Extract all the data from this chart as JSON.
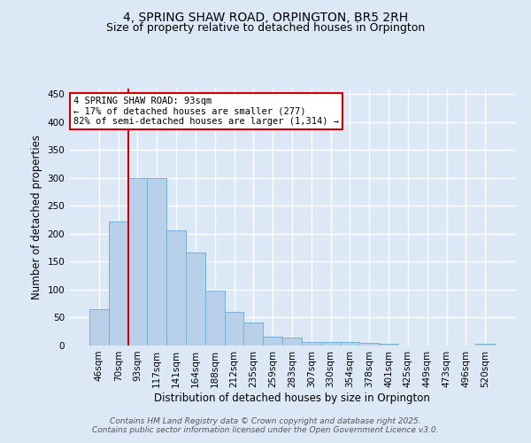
{
  "title": "4, SPRING SHAW ROAD, ORPINGTON, BR5 2RH",
  "subtitle": "Size of property relative to detached houses in Orpington",
  "xlabel": "Distribution of detached houses by size in Orpington",
  "ylabel": "Number of detached properties",
  "categories": [
    "46sqm",
    "70sqm",
    "93sqm",
    "117sqm",
    "141sqm",
    "164sqm",
    "188sqm",
    "212sqm",
    "235sqm",
    "259sqm",
    "283sqm",
    "307sqm",
    "330sqm",
    "354sqm",
    "378sqm",
    "401sqm",
    "425sqm",
    "449sqm",
    "473sqm",
    "496sqm",
    "520sqm"
  ],
  "values": [
    65,
    222,
    300,
    300,
    207,
    167,
    98,
    60,
    42,
    16,
    15,
    7,
    6,
    7,
    4,
    3,
    0,
    0,
    0,
    0,
    3
  ],
  "bar_color": "#b8d0ea",
  "bar_edge_color": "#7aafd4",
  "highlight_index": 2,
  "highlight_line_color": "#cc0000",
  "annotation_text": "4 SPRING SHAW ROAD: 93sqm\n← 17% of detached houses are smaller (277)\n82% of semi-detached houses are larger (1,314) →",
  "annotation_box_color": "#ffffff",
  "annotation_box_edge_color": "#cc0000",
  "ylim": [
    0,
    460
  ],
  "yticks": [
    0,
    50,
    100,
    150,
    200,
    250,
    300,
    350,
    400,
    450
  ],
  "footer1": "Contains HM Land Registry data © Crown copyright and database right 2025.",
  "footer2": "Contains public sector information licensed under the Open Government Licence v3.0.",
  "bg_color": "#dce8f5",
  "plot_bg_color": "#dce8f5",
  "grid_color": "#ffffff",
  "title_fontsize": 10,
  "subtitle_fontsize": 9,
  "axis_label_fontsize": 8.5,
  "tick_fontsize": 7.5,
  "annotation_fontsize": 7.5,
  "footer_fontsize": 6.5
}
